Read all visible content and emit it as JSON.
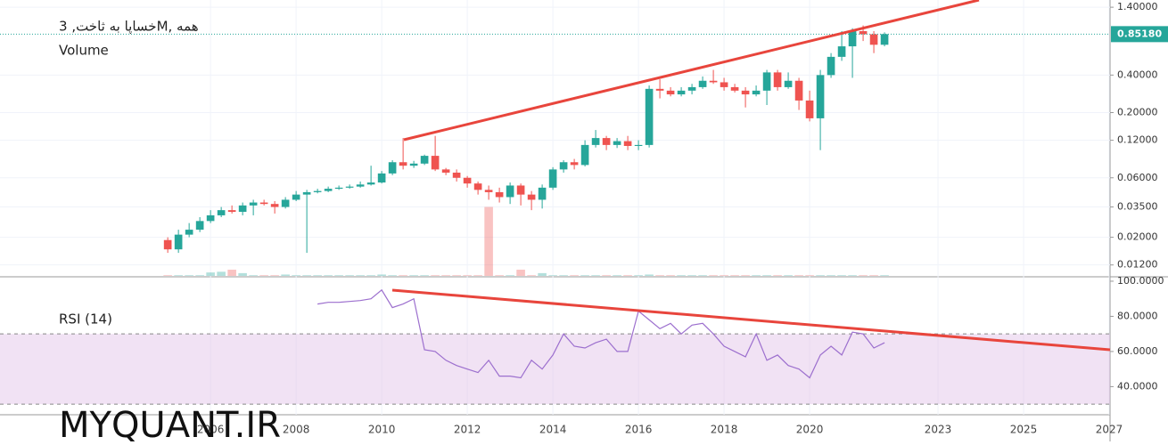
{
  "chart_data": [
    {
      "type": "candlestick",
      "title": "خساپا به ثاخت, 3M, همه",
      "volume_label": "Volume",
      "log_scale": true,
      "up_color": "#26a69a",
      "down_color": "#ef5350",
      "x": [
        2005,
        2005.25,
        2005.5,
        2005.75,
        2006,
        2006.25,
        2006.5,
        2006.75,
        2007,
        2007.25,
        2007.5,
        2007.75,
        2008,
        2008.25,
        2008.5,
        2008.75,
        2009,
        2009.25,
        2009.5,
        2009.75,
        2010,
        2010.25,
        2010.5,
        2010.75,
        2011,
        2011.25,
        2011.5,
        2011.75,
        2012,
        2012.25,
        2012.5,
        2012.75,
        2013,
        2013.25,
        2013.5,
        2013.75,
        2014,
        2014.25,
        2014.5,
        2014.75,
        2015,
        2015.25,
        2015.5,
        2015.75,
        2016,
        2016.25,
        2016.5,
        2016.75,
        2017,
        2017.25,
        2017.5,
        2017.75,
        2018,
        2018.25,
        2018.5,
        2018.75,
        2019,
        2019.25,
        2019.5,
        2019.75,
        2020,
        2020.25,
        2020.5,
        2020.75,
        2021,
        2021.25,
        2021.5,
        2021.75
      ],
      "open": [
        0.019,
        0.016,
        0.021,
        0.023,
        0.027,
        0.03,
        0.033,
        0.032,
        0.036,
        0.038,
        0.037,
        0.035,
        0.04,
        0.044,
        0.046,
        0.047,
        0.049,
        0.05,
        0.051,
        0.053,
        0.055,
        0.065,
        0.08,
        0.075,
        0.078,
        0.09,
        0.07,
        0.066,
        0.06,
        0.054,
        0.048,
        0.046,
        0.042,
        0.052,
        0.044,
        0.04,
        0.05,
        0.07,
        0.08,
        0.076,
        0.11,
        0.125,
        0.11,
        0.118,
        0.108,
        0.11,
        0.31,
        0.3,
        0.28,
        0.3,
        0.32,
        0.36,
        0.35,
        0.32,
        0.3,
        0.28,
        0.3,
        0.42,
        0.32,
        0.36,
        0.25,
        0.18,
        0.4,
        0.56,
        0.68,
        0.9,
        0.85,
        0.7
      ],
      "high": [
        0.02,
        0.023,
        0.026,
        0.029,
        0.033,
        0.035,
        0.036,
        0.038,
        0.04,
        0.04,
        0.039,
        0.042,
        0.047,
        0.048,
        0.049,
        0.051,
        0.052,
        0.053,
        0.056,
        0.075,
        0.068,
        0.083,
        0.125,
        0.082,
        0.092,
        0.13,
        0.072,
        0.07,
        0.062,
        0.056,
        0.052,
        0.05,
        0.055,
        0.054,
        0.047,
        0.053,
        0.073,
        0.083,
        0.085,
        0.12,
        0.145,
        0.13,
        0.125,
        0.13,
        0.12,
        0.33,
        0.37,
        0.32,
        0.32,
        0.34,
        0.39,
        0.44,
        0.38,
        0.34,
        0.32,
        0.33,
        0.44,
        0.44,
        0.42,
        0.38,
        0.3,
        0.44,
        0.6,
        0.9,
        0.95,
        1.0,
        0.9,
        0.88
      ],
      "low": [
        0.015,
        0.015,
        0.02,
        0.022,
        0.026,
        0.029,
        0.031,
        0.03,
        0.03,
        0.036,
        0.031,
        0.034,
        0.039,
        0.015,
        0.045,
        0.046,
        0.048,
        0.049,
        0.05,
        0.052,
        0.054,
        0.063,
        0.07,
        0.072,
        0.076,
        0.068,
        0.063,
        0.056,
        0.05,
        0.044,
        0.04,
        0.038,
        0.037,
        0.036,
        0.033,
        0.034,
        0.048,
        0.066,
        0.07,
        0.074,
        0.105,
        0.1,
        0.104,
        0.1,
        0.1,
        0.105,
        0.26,
        0.27,
        0.27,
        0.28,
        0.31,
        0.34,
        0.3,
        0.29,
        0.22,
        0.27,
        0.23,
        0.3,
        0.31,
        0.21,
        0.17,
        0.1,
        0.38,
        0.52,
        0.38,
        0.75,
        0.6,
        0.68
      ],
      "close": [
        0.016,
        0.021,
        0.023,
        0.027,
        0.03,
        0.033,
        0.032,
        0.036,
        0.038,
        0.037,
        0.035,
        0.04,
        0.044,
        0.046,
        0.047,
        0.049,
        0.05,
        0.051,
        0.053,
        0.055,
        0.065,
        0.08,
        0.075,
        0.078,
        0.09,
        0.07,
        0.066,
        0.06,
        0.054,
        0.048,
        0.046,
        0.042,
        0.052,
        0.044,
        0.04,
        0.05,
        0.07,
        0.08,
        0.076,
        0.11,
        0.125,
        0.11,
        0.118,
        0.108,
        0.11,
        0.31,
        0.3,
        0.28,
        0.3,
        0.32,
        0.36,
        0.35,
        0.32,
        0.3,
        0.28,
        0.3,
        0.42,
        0.32,
        0.36,
        0.25,
        0.18,
        0.4,
        0.56,
        0.68,
        0.9,
        0.85,
        0.7,
        0.8518
      ],
      "volume": [
        1,
        1,
        1,
        1,
        5,
        6,
        9,
        4,
        1,
        1,
        1,
        2,
        1,
        1,
        1,
        1,
        1,
        1,
        1,
        1,
        2,
        1,
        1,
        1,
        1,
        1,
        1,
        1,
        1,
        1,
        100,
        1,
        1,
        9,
        1,
        4,
        1,
        1,
        1,
        1,
        1,
        1,
        1,
        1,
        1,
        2,
        1,
        1,
        1,
        1,
        1,
        1,
        1,
        1,
        1,
        1,
        1,
        1,
        1,
        1,
        1,
        1,
        1,
        1,
        1,
        1,
        1,
        1
      ],
      "volume_lim": [
        0,
        400
      ],
      "last_price": {
        "value": 0.8518,
        "label": "0.85180"
      },
      "xlim": [
        2001.08,
        2027.02
      ],
      "ylim": [
        0.0098,
        1.6
      ],
      "yticks": [
        {
          "value": 1.4,
          "label": "1.40000"
        },
        {
          "value": 0.4,
          "label": "0.40000"
        },
        {
          "value": 0.2,
          "label": "0.20000"
        },
        {
          "value": 0.12,
          "label": "0.12000"
        },
        {
          "value": 0.06,
          "label": "0.06000"
        },
        {
          "value": 0.035,
          "label": "0.03500"
        },
        {
          "value": 0.02,
          "label": "0.02000"
        },
        {
          "value": 0.012,
          "label": "0.01200"
        }
      ],
      "xticks": [
        2006,
        2008,
        2010,
        2012,
        2014,
        2016,
        2018,
        2020,
        2023,
        2025,
        2027
      ]
    },
    {
      "type": "line",
      "title": "RSI (14)",
      "color": "#9c6fce",
      "band": [
        30,
        70
      ],
      "band_color": "#e1bee7",
      "x": [
        2008.5,
        2008.75,
        2009,
        2009.25,
        2009.5,
        2009.75,
        2010,
        2010.25,
        2010.5,
        2010.75,
        2011,
        2011.25,
        2011.5,
        2011.75,
        2012,
        2012.25,
        2012.5,
        2012.75,
        2013,
        2013.25,
        2013.5,
        2013.75,
        2014,
        2014.25,
        2014.5,
        2014.75,
        2015,
        2015.25,
        2015.5,
        2015.75,
        2016,
        2016.25,
        2016.5,
        2016.75,
        2017,
        2017.25,
        2017.5,
        2017.75,
        2018,
        2018.25,
        2018.5,
        2018.75,
        2019,
        2019.25,
        2019.5,
        2019.75,
        2020,
        2020.25,
        2020.5,
        2020.75,
        2021,
        2021.25,
        2021.5,
        2021.75
      ],
      "values": [
        87,
        88,
        88,
        88.5,
        89,
        90,
        95,
        85,
        87,
        90,
        61,
        60,
        55,
        52,
        50,
        48,
        55,
        46,
        46,
        45,
        55,
        50,
        58,
        70,
        63,
        62,
        65,
        67,
        60,
        60,
        83,
        78,
        73,
        76,
        70,
        75,
        76,
        70,
        63,
        60,
        57,
        70,
        55,
        58,
        52,
        50,
        45,
        58,
        63,
        58,
        71,
        70,
        62,
        65
      ],
      "xlim": [
        2001.08,
        2027.02
      ],
      "ylim": [
        24,
        101.5
      ],
      "yticks": [
        {
          "value": 100,
          "label": "100.0000"
        },
        {
          "value": 80,
          "label": "80.0000"
        },
        {
          "value": 60,
          "label": "60.0000"
        },
        {
          "value": 40,
          "label": "40.0000"
        }
      ]
    }
  ],
  "watermark": "MYQUANT.IR"
}
